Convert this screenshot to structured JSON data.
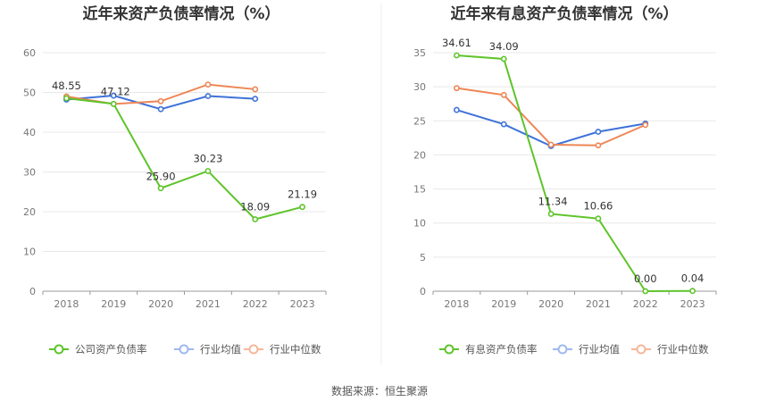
{
  "source": "数据来源：恒生聚源",
  "chart_data": [
    {
      "type": "line",
      "title": "近年来资产负债率情况（%）",
      "x": [
        "2018",
        "2019",
        "2020",
        "2021",
        "2022",
        "2023"
      ],
      "ylim": [
        0,
        60
      ],
      "yticks": [
        0,
        10,
        20,
        30,
        40,
        50,
        60
      ],
      "grid": true,
      "legend_position": "bottom",
      "series": [
        {
          "name": "公司资产负债率",
          "color": "#5ec42a",
          "values": [
            48.55,
            47.12,
            25.9,
            30.23,
            18.09,
            21.19
          ],
          "labels": [
            "48.55",
            "47.12",
            "25.90",
            "30.23",
            "18.09",
            "21.19"
          ]
        },
        {
          "name": "行业均值",
          "color": "#3f72d8",
          "values": [
            48.2,
            49.2,
            45.8,
            49.1,
            48.4,
            null
          ]
        },
        {
          "name": "行业中位数",
          "color": "#ee8656",
          "values": [
            49.0,
            47.1,
            47.8,
            52.0,
            50.8,
            null
          ]
        }
      ]
    },
    {
      "type": "line",
      "title": "近年来有息资产负债率情况（%）",
      "x": [
        "2018",
        "2019",
        "2020",
        "2021",
        "2022",
        "2023"
      ],
      "ylim": [
        0,
        35
      ],
      "yticks": [
        0,
        5,
        10,
        15,
        20,
        25,
        30,
        35
      ],
      "grid": true,
      "legend_position": "bottom",
      "series": [
        {
          "name": "有息资产负债率",
          "color": "#5ec42a",
          "values": [
            34.61,
            34.09,
            11.34,
            10.66,
            0.0,
            0.04
          ],
          "labels": [
            "34.61",
            "34.09",
            "11.34",
            "10.66",
            "0.00",
            "0.04"
          ]
        },
        {
          "name": "行业均值",
          "color": "#3f72d8",
          "values": [
            26.6,
            24.5,
            21.3,
            23.4,
            24.6,
            null
          ]
        },
        {
          "name": "行业中位数",
          "color": "#ee8656",
          "values": [
            29.8,
            28.8,
            21.5,
            21.4,
            24.4,
            null
          ]
        }
      ]
    }
  ]
}
